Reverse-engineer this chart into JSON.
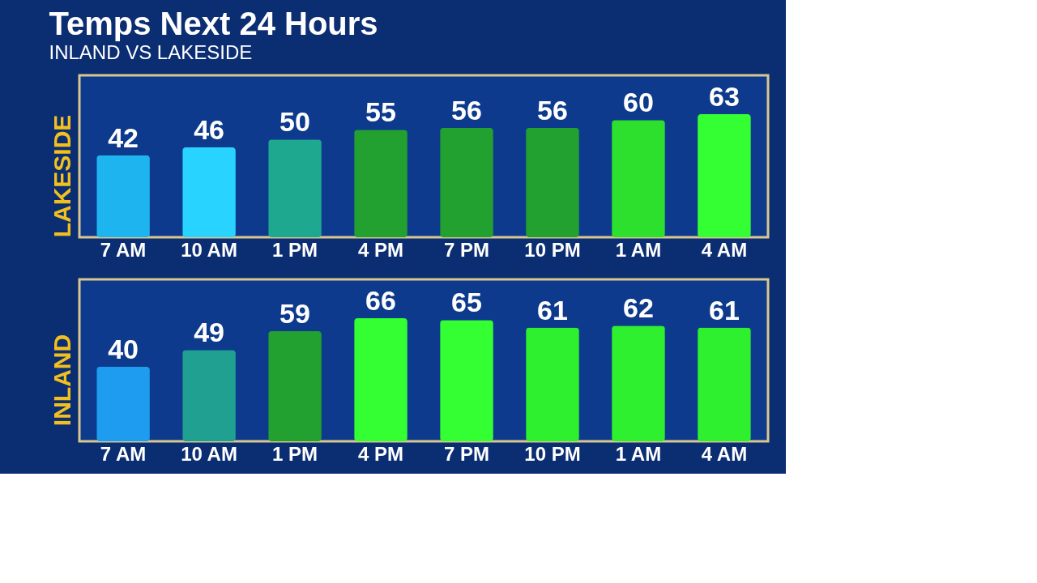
{
  "chart_data": [
    {
      "type": "bar",
      "title": "Temps Next 24 Hours",
      "subtitle": "INLAND VS LAKESIDE",
      "ylabel": "LAKESIDE",
      "categories": [
        "7 AM",
        "10 AM",
        "1 PM",
        "4 PM",
        "7 PM",
        "10 PM",
        "1 AM",
        "4 AM"
      ],
      "values": [
        42,
        46,
        50,
        55,
        56,
        56,
        60,
        63
      ],
      "colors": [
        "#1eb4f0",
        "#28d4ff",
        "#1fa890",
        "#22a030",
        "#22a030",
        "#22a030",
        "#2ee02e",
        "#33ff33"
      ],
      "data_labels": true,
      "grid": false
    },
    {
      "type": "bar",
      "ylabel": "INLAND",
      "categories": [
        "7 AM",
        "10 AM",
        "1 PM",
        "4 PM",
        "7 PM",
        "10 PM",
        "1 AM",
        "4 AM"
      ],
      "values": [
        40,
        49,
        59,
        66,
        65,
        61,
        62,
        61
      ],
      "colors": [
        "#1e9cf0",
        "#1fa090",
        "#22a030",
        "#33ff33",
        "#33ff33",
        "#2ef02e",
        "#2ef02e",
        "#2ef02e"
      ],
      "data_labels": true,
      "grid": false
    }
  ]
}
